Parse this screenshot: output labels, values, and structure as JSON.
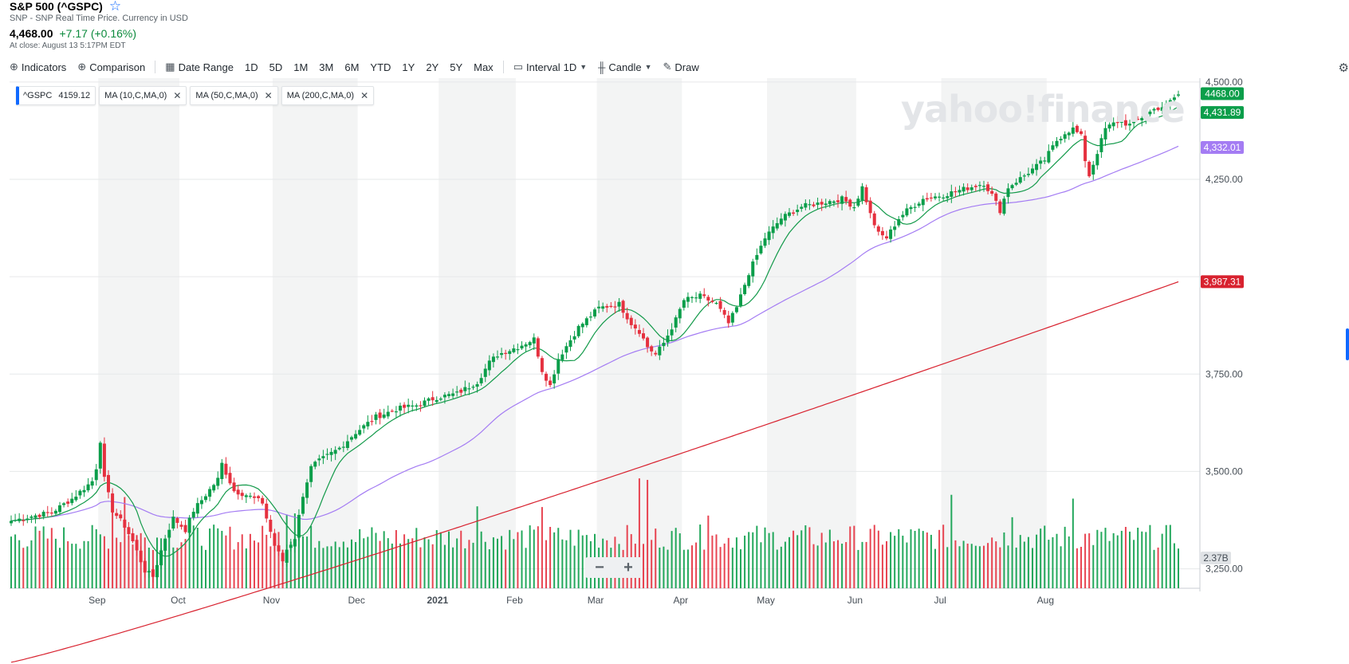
{
  "header": {
    "title": "S&P 500 (^GSPC)",
    "subtitle": "SNP - SNP Real Time Price. Currency in USD",
    "price": "4,468.00",
    "change": "+7.17 (+0.16%)",
    "close_time": "At close: August 13 5:17PM EDT"
  },
  "toolbar": {
    "indicators": "Indicators",
    "comparison": "Comparison",
    "date_range": "Date Range",
    "ranges": [
      "1D",
      "5D",
      "1M",
      "3M",
      "6M",
      "YTD",
      "1Y",
      "2Y",
      "5Y",
      "Max"
    ],
    "interval_label": "Interval",
    "interval_value": "1D",
    "chart_type": "Candle",
    "draw": "Draw"
  },
  "pills": [
    {
      "label": "^GSPC",
      "value": "4159.12"
    },
    {
      "label": "MA (10,C,MA,0)",
      "value": ""
    },
    {
      "label": "MA (50,C,MA,0)",
      "value": ""
    },
    {
      "label": "MA (200,C,MA,0)",
      "value": ""
    }
  ],
  "watermark": "yahoo!finance",
  "colors": {
    "up": "#0b9e4a",
    "down": "#e5313f",
    "ma10": "#139a4a",
    "ma50": "#a47cf3",
    "ma200": "#d8222f",
    "band": "#f3f4f4"
  },
  "chart_data": {
    "type": "candlestick",
    "title": "S&P 500 (^GSPC)",
    "x_ticks": [
      "Sep",
      "Oct",
      "Nov",
      "Dec",
      "2021",
      "Feb",
      "Mar",
      "Apr",
      "May",
      "Jun",
      "Jul",
      "Aug"
    ],
    "y_ticks": [
      "4,500.00",
      "4,250.00",
      "3,750.00",
      "3,500.00",
      "3,250.00"
    ],
    "ylim": [
      3200,
      4510
    ],
    "price_labels": [
      {
        "text": "4468.00",
        "value": 4468.0,
        "color": "#0b9e4a"
      },
      {
        "text": "4,431.89",
        "value": 4431.89,
        "color": "#0b9e4a"
      },
      {
        "text": "4,332.01",
        "value": 4332.01,
        "color": "#a47cf3"
      },
      {
        "text": "3,987.31",
        "value": 3987.31,
        "color": "#d8222f"
      }
    ],
    "volume_label": "2.37B",
    "close_anchors": [
      [
        0,
        3373
      ],
      [
        5,
        3385
      ],
      [
        10,
        3395
      ],
      [
        15,
        3430
      ],
      [
        20,
        3475
      ],
      [
        21,
        3510
      ],
      [
        22,
        3580
      ],
      [
        23,
        3480
      ],
      [
        25,
        3400
      ],
      [
        28,
        3360
      ],
      [
        30,
        3320
      ],
      [
        33,
        3245
      ],
      [
        35,
        3230
      ],
      [
        38,
        3330
      ],
      [
        40,
        3380
      ],
      [
        43,
        3350
      ],
      [
        45,
        3400
      ],
      [
        48,
        3440
      ],
      [
        51,
        3480
      ],
      [
        52,
        3520
      ],
      [
        55,
        3450
      ],
      [
        58,
        3440
      ],
      [
        62,
        3420
      ],
      [
        63,
        3380
      ],
      [
        65,
        3310
      ],
      [
        67,
        3270
      ],
      [
        68,
        3300
      ],
      [
        70,
        3330
      ],
      [
        72,
        3440
      ],
      [
        74,
        3510
      ],
      [
        75,
        3520
      ],
      [
        78,
        3540
      ],
      [
        81,
        3560
      ],
      [
        85,
        3600
      ],
      [
        90,
        3640
      ],
      [
        95,
        3660
      ],
      [
        100,
        3670
      ],
      [
        105,
        3690
      ],
      [
        110,
        3700
      ],
      [
        115,
        3730
      ],
      [
        118,
        3780
      ],
      [
        120,
        3800
      ],
      [
        125,
        3820
      ],
      [
        129,
        3840
      ],
      [
        131,
        3760
      ],
      [
        133,
        3720
      ],
      [
        135,
        3790
      ],
      [
        140,
        3870
      ],
      [
        145,
        3920
      ],
      [
        150,
        3930
      ],
      [
        153,
        3880
      ],
      [
        155,
        3860
      ],
      [
        157,
        3820
      ],
      [
        159,
        3800
      ],
      [
        161,
        3830
      ],
      [
        164,
        3890
      ],
      [
        166,
        3940
      ],
      [
        170,
        3950
      ],
      [
        174,
        3930
      ],
      [
        177,
        3880
      ],
      [
        179,
        3920
      ],
      [
        182,
        4010
      ],
      [
        186,
        4100
      ],
      [
        190,
        4150
      ],
      [
        195,
        4180
      ],
      [
        200,
        4190
      ],
      [
        205,
        4200
      ],
      [
        208,
        4180
      ],
      [
        210,
        4230
      ],
      [
        212,
        4160
      ],
      [
        214,
        4110
      ],
      [
        216,
        4100
      ],
      [
        219,
        4150
      ],
      [
        221,
        4170
      ],
      [
        225,
        4200
      ],
      [
        230,
        4210
      ],
      [
        235,
        4225
      ],
      [
        240,
        4240
      ],
      [
        242,
        4210
      ],
      [
        244,
        4170
      ],
      [
        246,
        4230
      ],
      [
        250,
        4260
      ],
      [
        255,
        4300
      ],
      [
        258,
        4350
      ],
      [
        260,
        4370
      ],
      [
        262,
        4380
      ],
      [
        264,
        4360
      ],
      [
        265,
        4300
      ],
      [
        266,
        4260
      ],
      [
        268,
        4320
      ],
      [
        270,
        4380
      ],
      [
        273,
        4400
      ],
      [
        276,
        4390
      ],
      [
        279,
        4410
      ],
      [
        282,
        4430
      ],
      [
        285,
        4440
      ],
      [
        287,
        4460
      ],
      [
        288,
        4468
      ]
    ]
  }
}
